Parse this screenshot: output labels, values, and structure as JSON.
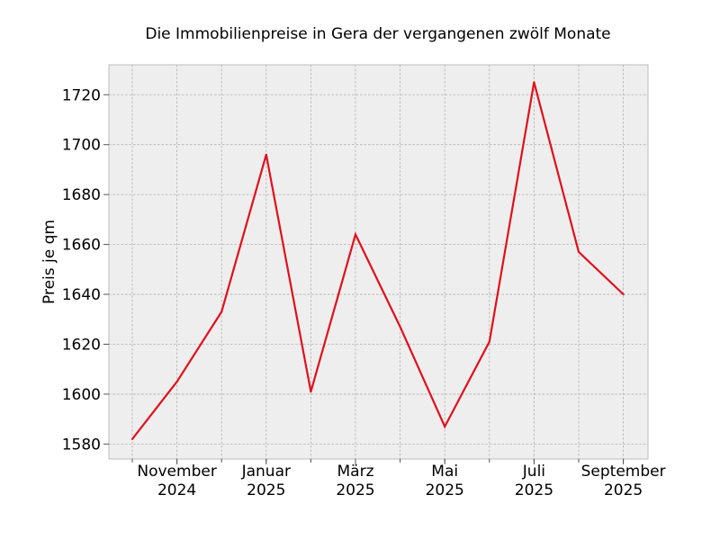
{
  "chart_data": {
    "type": "line",
    "title": "Die Immobilienpreise in Gera der vergangenen zwölf Monate",
    "xlabel": "",
    "ylabel": "Preis je qm",
    "x": [
      "2024-10",
      "2024-11",
      "2024-12",
      "2025-01",
      "2025-02",
      "2025-03",
      "2025-04",
      "2025-05",
      "2025-06",
      "2025-07",
      "2025-08",
      "2025-09"
    ],
    "x_tick_labels": [
      {
        "x": "2024-11",
        "line1": "November",
        "line2": "2024"
      },
      {
        "x": "2025-01",
        "line1": "Januar",
        "line2": "2025"
      },
      {
        "x": "2025-03",
        "line1": "März",
        "line2": "2025"
      },
      {
        "x": "2025-05",
        "line1": "Mai",
        "line2": "2025"
      },
      {
        "x": "2025-07",
        "line1": "Juli",
        "line2": "2025"
      },
      {
        "x": "2025-09",
        "line1": "September",
        "line2": "2025"
      }
    ],
    "series": [
      {
        "values": [
          1582,
          1605,
          1633,
          1696,
          1601,
          1664,
          1627,
          1587,
          1621,
          1725,
          1657,
          1640
        ],
        "color": "#e0101c"
      }
    ],
    "ylim": [
      1574,
      1732
    ],
    "yticks": [
      1580,
      1600,
      1620,
      1640,
      1660,
      1680,
      1700,
      1720
    ],
    "grid": true,
    "legend": "none"
  }
}
